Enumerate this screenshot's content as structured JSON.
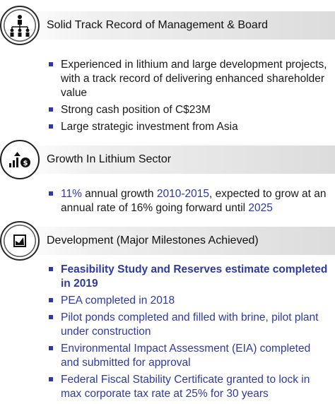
{
  "section1": {
    "title": "Solid Track Record of Management & Board",
    "icon": "team-hierarchy-icon",
    "items": [
      "Experienced in lithium and large development projects, with a track record of delivering enhanced shareholder value",
      "Strong cash position of C$23M",
      "Large strategic investment from Asia"
    ]
  },
  "section2": {
    "title": "Growth In Lithium Sector",
    "icon": "growth-chart-icon",
    "item": {
      "pct": "11%",
      "t1": " annual growth ",
      "years": "2010-2015",
      "t2": ", expected to grow at an annual rate of 16% going forward until ",
      "end_year": "2025"
    }
  },
  "section3": {
    "title": "Development (Major Milestones Achieved)",
    "icon": "checklist-icon",
    "items": [
      "Feasibility Study and Reserves estimate completed in 2019",
      "PEA completed in 2018",
      "Pilot ponds completed and filled with brine, pilot plant under construction",
      "Environmental Impact Assessment (EIA)  completed and submitted for approval",
      "Federal Fiscal Stability Certificate granted to lock in max corporate tax rate at 25% for 30 years"
    ]
  },
  "colors": {
    "accent": "#2e3a9e",
    "header_gradient_end": "#dcdcdc"
  }
}
